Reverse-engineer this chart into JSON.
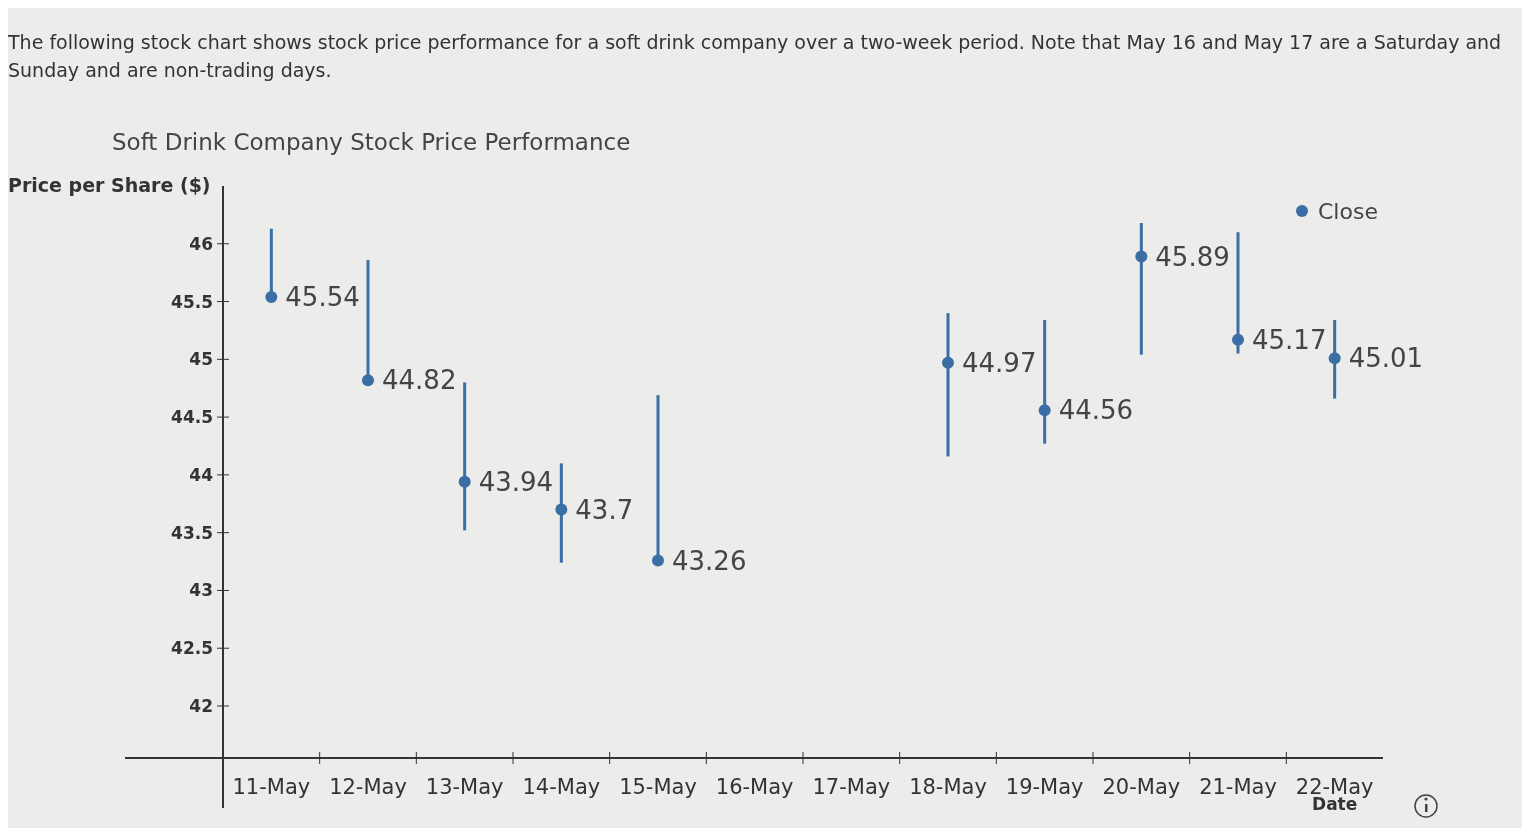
{
  "chart_data": {
    "type": "scatter",
    "title": "Soft Drink Company Stock Price Performance",
    "subtitle": "The following stock chart shows stock price performance for a soft drink company over a two-week period. Note that May 16 and May 17 are a Saturday and Sunday and are non-trading days.",
    "xlabel": "Date",
    "ylabel": "Price per Share ($)",
    "categories": [
      "11-May",
      "12-May",
      "13-May",
      "14-May",
      "15-May",
      "16-May",
      "17-May",
      "18-May",
      "19-May",
      "20-May",
      "21-May",
      "22-May"
    ],
    "series": [
      {
        "name": "Close",
        "color": "#3a6ea5",
        "values": [
          45.54,
          44.82,
          43.94,
          43.7,
          43.26,
          null,
          null,
          44.97,
          44.56,
          45.89,
          45.17,
          45.01
        ],
        "errors": [
          [
            45.54,
            46.13
          ],
          [
            44.82,
            45.86
          ],
          [
            43.52,
            44.8
          ],
          [
            43.24,
            44.1
          ],
          [
            43.26,
            44.69
          ],
          null,
          null,
          [
            44.16,
            45.4
          ],
          [
            44.27,
            45.34
          ],
          [
            45.04,
            46.18
          ],
          [
            45.05,
            46.1
          ],
          [
            44.66,
            45.34
          ]
        ]
      }
    ],
    "ylim": [
      41.55,
      46.5
    ],
    "yticks": [
      42,
      42.5,
      43,
      43.5,
      44,
      44.5,
      45,
      45.5,
      46
    ],
    "data_labels": true,
    "legend": "top right",
    "marker": "circle",
    "grid": false
  }
}
